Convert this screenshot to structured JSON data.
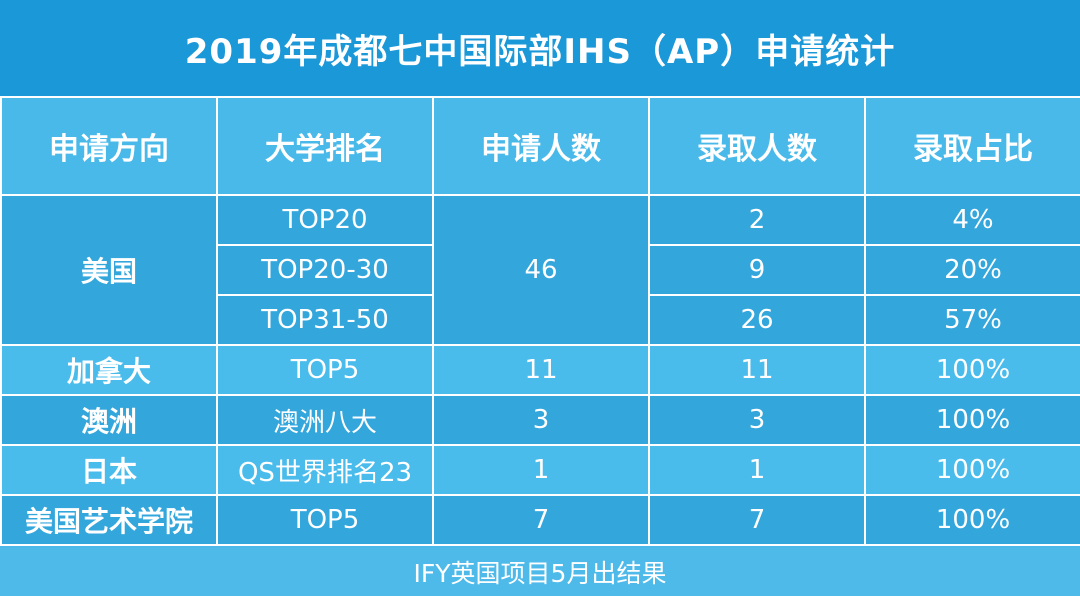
{
  "title": "2019年成都七中国际部IHS（AP）申请统计",
  "headers": [
    "申请方向",
    "大学排名",
    "申请人数",
    "录取人数",
    "录取占比"
  ],
  "usa": {
    "country": "美国",
    "applicants": "46",
    "rows": [
      {
        "rank": "TOP20",
        "admitted": "2",
        "ratio": "4%"
      },
      {
        "rank": "TOP20-30",
        "admitted": "9",
        "ratio": "20%"
      },
      {
        "rank": "TOP31-50",
        "admitted": "26",
        "ratio": "57%"
      }
    ]
  },
  "rows": [
    {
      "country": "加拿大",
      "rank": "TOP5",
      "applicants": "11",
      "admitted": "11",
      "ratio": "100%"
    },
    {
      "country": "澳洲",
      "rank": "澳洲八大",
      "applicants": "3",
      "admitted": "3",
      "ratio": "100%"
    },
    {
      "country": "日本",
      "rank": "QS世界排名23",
      "applicants": "1",
      "admitted": "1",
      "ratio": "100%"
    },
    {
      "country": "美国艺术学院",
      "rank": "TOP5",
      "applicants": "7",
      "admitted": "7",
      "ratio": "100%"
    }
  ],
  "footer": "IFY英国项目5月出结果"
}
